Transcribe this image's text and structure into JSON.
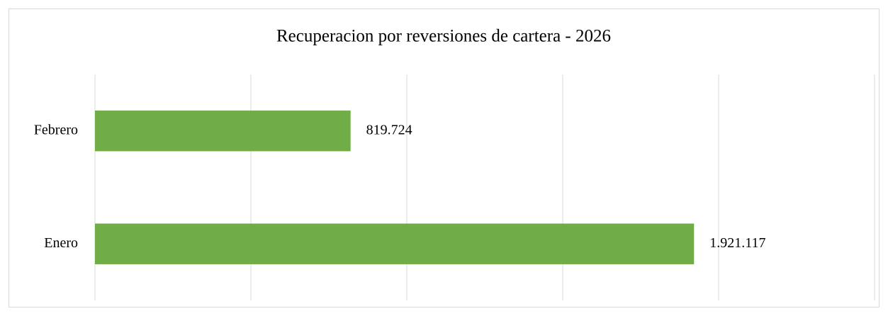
{
  "chart_data": {
    "type": "bar",
    "orientation": "horizontal",
    "title": "Recuperacion por reversiones de cartera - 2026",
    "categories": [
      "Enero",
      "Febrero"
    ],
    "values": [
      1921117,
      819724
    ],
    "value_labels": [
      "1.921.117",
      "819.724"
    ],
    "color": "#70ad47",
    "xlim": [
      0,
      2500000
    ],
    "xticks": [
      0,
      500000,
      1000000,
      1500000,
      2000000,
      2500000
    ],
    "grid": true
  }
}
